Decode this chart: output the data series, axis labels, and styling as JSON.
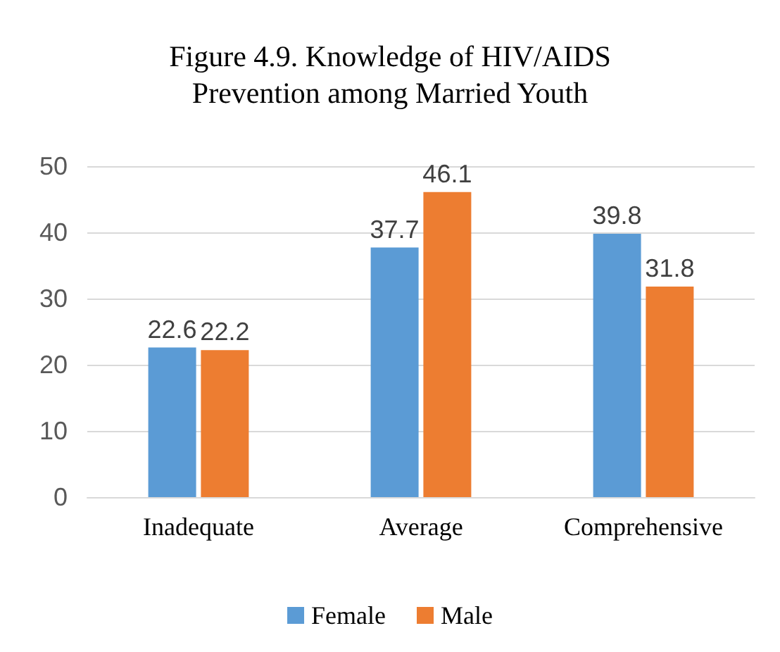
{
  "chart_data": {
    "type": "bar",
    "title": "Figure 4.9. Knowledge of HIV/AIDS\nPrevention among Married Youth",
    "categories": [
      "Inadequate",
      "Average",
      "Comprehensive"
    ],
    "series": [
      {
        "name": "Female",
        "color": "#5b9bd5",
        "values": [
          22.6,
          37.7,
          39.8
        ]
      },
      {
        "name": "Male",
        "color": "#ed7d31",
        "values": [
          22.2,
          46.1,
          31.8
        ]
      }
    ],
    "ylim": [
      0,
      50
    ],
    "yticks": [
      0,
      10,
      20,
      30,
      40,
      50
    ],
    "grid": "y",
    "legend": "bottom",
    "data_labels": true
  }
}
